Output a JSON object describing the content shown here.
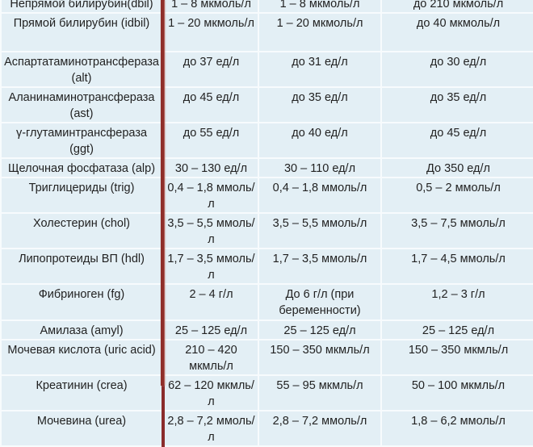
{
  "columns_visible": 4,
  "rows": [
    {
      "name": "Непрямой билирубин(dbil)",
      "c2": "1 – 8 мкмоль/л",
      "c3": "1 – 8 мкмоль/л",
      "c4": "до 210 мкмоль/л"
    },
    {
      "name": "Прямой билирубин (idbil)",
      "c2": "1 – 20 мкмоль/л",
      "c3": "1 – 20 мкмоль/л",
      "c4": "до 40 мкмоль/л"
    },
    {
      "name": "Аспартатаминотрансфераза (alt)",
      "c2": "до 37 ед/л",
      "c3": "до 31 ед/л",
      "c4": "до 30 ед/л"
    },
    {
      "name": "Аланинаминотрансфераза (ast)",
      "c2": "до 45 ед/л",
      "c3": "до 35 ед/л",
      "c4": "до 35 ед/л"
    },
    {
      "name": "γ-глутаминтрансфераза (ggt)",
      "c2": "до 55 ед/л",
      "c3": "до 40 ед/л",
      "c4": "до 45 ед/л"
    },
    {
      "name": "Щелочная фосфатаза (alp)",
      "c2": "30 – 130 ед/л",
      "c3": "30 – 110 ед/л",
      "c4": "До 350 ед/л"
    },
    {
      "name": "Триглицериды (trig)",
      "c2": "0,4 – 1,8 ммоль/л",
      "c3": "0,4 – 1,8 ммоль/л",
      "c4": "0,5 – 2 ммоль/л"
    },
    {
      "name": "Холестерин (chol)",
      "c2": "3,5 – 5,5 ммоль/л",
      "c3": "3,5 – 5,5 ммоль/л",
      "c4": "3,5 – 7,5 ммоль/л"
    },
    {
      "name": "Липопротеиды ВП (hdl)",
      "c2": "1,7 – 3,5 ммоль/л",
      "c3": "1,7 – 3,5 ммоль/л",
      "c4": "1,7 – 4,5 ммоль/л"
    },
    {
      "name": "Фибриноген (fg)",
      "c2": "2 – 4 г/л",
      "c3": "До 6 г/л (при беременности)",
      "c4": "1,2 – 3 г/л"
    },
    {
      "name": "Амилаза (amyl)",
      "c2": "25 – 125 ед/л",
      "c3": "25 – 125 ед/л",
      "c4": "25 – 125 ед/л"
    },
    {
      "name": "Мочевая кислота (uric acid)",
      "c2": "210 – 420 мкмль/л",
      "c3": "150 – 350 мкмль/л",
      "c4": "150 – 350 мкмль/л"
    },
    {
      "name": "Креатинин (crea)",
      "c2": "62 – 120 мкмль/л",
      "c3": "55 – 95 мкмль/л",
      "c4": "50 – 100 мкмль/л"
    },
    {
      "name": "Мочевина (urea)",
      "c2": "2,8 – 7,2 ммоль/л",
      "c3": "2,8 – 7,2 ммоль/л",
      "c4": "1,8 – 6,2 ммоль/л"
    }
  ]
}
